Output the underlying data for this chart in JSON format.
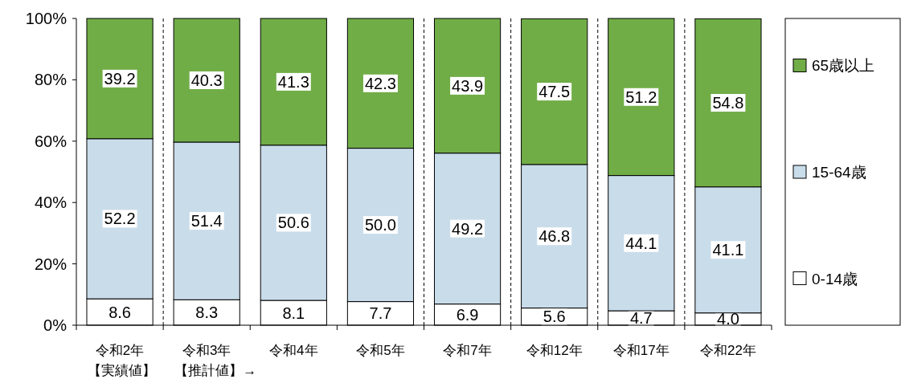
{
  "chart_data": {
    "type": "bar",
    "stacked": true,
    "categories": [
      "令和2年",
      "令和3年",
      "令和4年",
      "令和5年",
      "令和7年",
      "令和12年",
      "令和17年",
      "令和22年"
    ],
    "series": [
      {
        "name": "0-14歳",
        "color": "#ffffff",
        "values": [
          8.6,
          8.3,
          8.1,
          7.7,
          6.9,
          5.6,
          4.7,
          4.0
        ],
        "value_labels": [
          "8.6",
          "8.3",
          "8.1",
          "7.7",
          "6.9",
          "5.6",
          "4.7",
          "4.0"
        ]
      },
      {
        "name": "15-64歳",
        "color": "#c9dcea",
        "values": [
          52.2,
          51.4,
          50.6,
          50.0,
          49.2,
          46.8,
          44.1,
          41.1
        ],
        "value_labels": [
          "52.2",
          "51.4",
          "50.6",
          "50.0",
          "49.2",
          "46.8",
          "44.1",
          "41.1"
        ]
      },
      {
        "name": "65歳以上",
        "color": "#70ad47",
        "values": [
          39.2,
          40.3,
          41.3,
          42.3,
          43.9,
          47.5,
          51.2,
          54.8
        ],
        "value_labels": [
          "39.2",
          "40.3",
          "41.3",
          "42.3",
          "43.9",
          "47.5",
          "51.2",
          "54.8"
        ]
      }
    ],
    "ylim": [
      0,
      100
    ],
    "yticks": [
      {
        "value": 0,
        "label": "0%"
      },
      {
        "value": 20,
        "label": "20%"
      },
      {
        "value": 40,
        "label": "40%"
      },
      {
        "value": 60,
        "label": "60%"
      },
      {
        "value": 80,
        "label": "80%"
      },
      {
        "value": 100,
        "label": "100%"
      }
    ],
    "legend": "right",
    "annotations": [
      "【実績値】",
      "【推計値】→"
    ]
  }
}
